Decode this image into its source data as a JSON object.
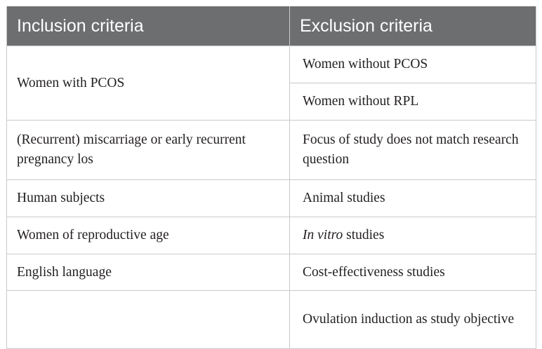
{
  "header": {
    "inclusion": "Inclusion criteria",
    "exclusion": "Exclusion criteria"
  },
  "rows": [
    {
      "inclusion": "Women with PCOS",
      "exclusion": "Women without PCOS"
    },
    {
      "inclusion": "",
      "exclusion": "Women without RPL"
    },
    {
      "inclusion": "(Recurrent) miscarriage or early recurrent pregnancy los",
      "exclusion": "Focus of study does not match research question"
    },
    {
      "inclusion": "Human subjects",
      "exclusion": "Animal studies"
    },
    {
      "inclusion": "Women of reproductive age",
      "exclusion_italic": "In vitro",
      "exclusion_rest": " studies"
    },
    {
      "inclusion": "English language",
      "exclusion": "Cost-effectiveness studies"
    },
    {
      "inclusion": "",
      "exclusion": "Ovulation induction as study objective"
    }
  ],
  "colors": {
    "header_bg": "#6d6e70",
    "header_text": "#ffffff",
    "border": "#c9c9c9",
    "body_text": "#231f20"
  }
}
